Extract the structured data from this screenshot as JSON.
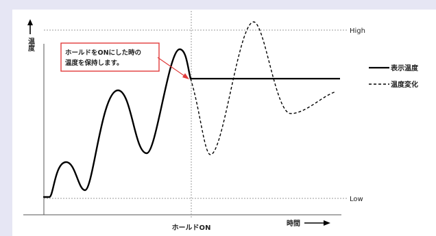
{
  "axes": {
    "y_label": "温度",
    "x_label": "時間"
  },
  "levels": {
    "high": "High",
    "low": "Low"
  },
  "event": {
    "label": "ホールドON"
  },
  "callout": {
    "line1": "ホールドをONにした時の",
    "line2": "温度を保持します。",
    "border_color": "#e03a3a"
  },
  "legend": {
    "solid": "表示温度",
    "dashed": "温度変化"
  },
  "colors": {
    "background": "#e6e6f4",
    "curve": "#000000",
    "guide": "#999999"
  }
}
